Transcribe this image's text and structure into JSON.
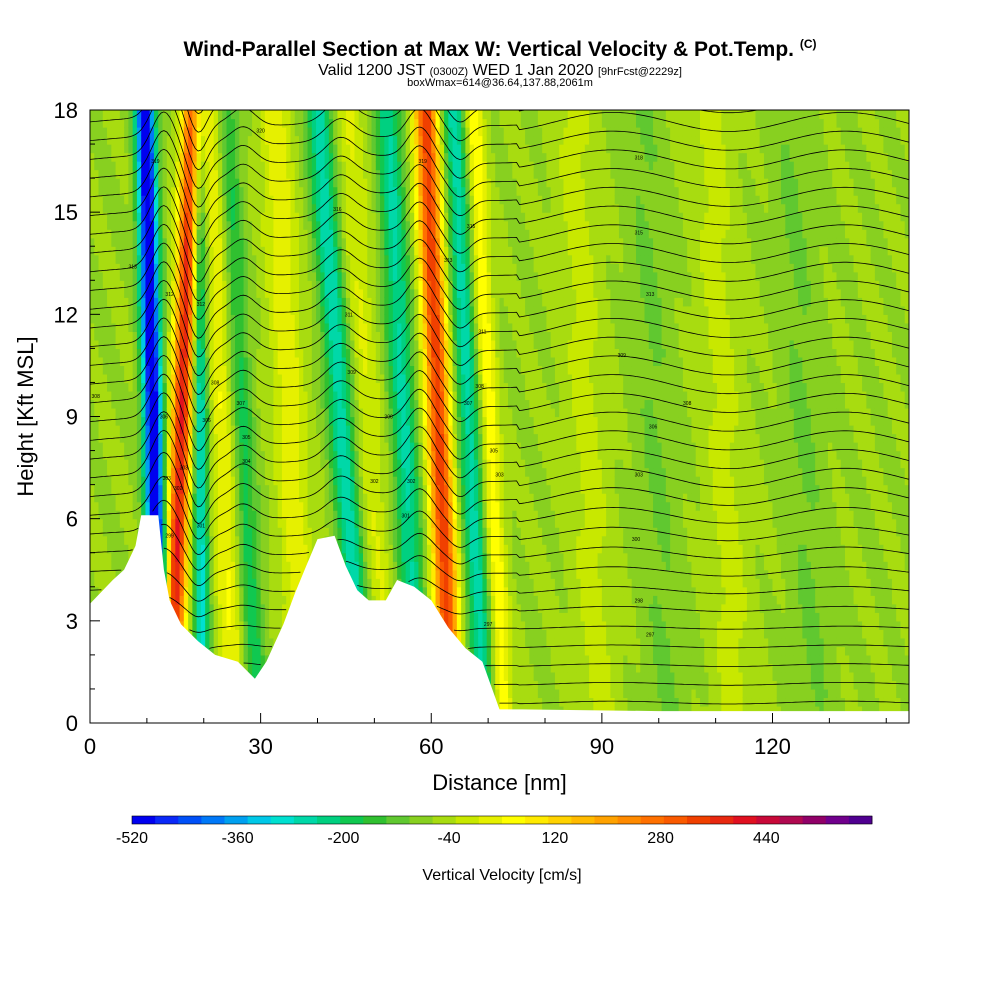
{
  "title": {
    "main": "Wind-Parallel Section at Max W: Vertical Velocity & Pot.Temp.",
    "copyright": "(C)",
    "valid_prefix": "Valid 1200 JST",
    "valid_utc": "(0300Z)",
    "valid_date": "WED 1 Jan 2020",
    "forecast": "[9hrFcst@2229z]",
    "box_wmax": "boxWmax=614@36.64,137.88,2061m"
  },
  "chart_data": {
    "type": "heatmap",
    "xlabel": "Distance [nm]",
    "ylabel": "Height [Kft MSL]",
    "xlim": [
      0,
      144
    ],
    "ylim": [
      0,
      18
    ],
    "x_ticks": [
      0,
      30,
      60,
      90,
      120
    ],
    "y_ticks": [
      0,
      3,
      6,
      9,
      12,
      15,
      18
    ],
    "grid": false,
    "colorbar": {
      "label": "Vertical Velocity [cm/s]",
      "tick_values": [
        -520,
        -360,
        -200,
        -40,
        120,
        280,
        440
      ],
      "min": -520,
      "max": 600,
      "step": 40,
      "colors": [
        "#0000f0",
        "#0a28f8",
        "#0050f8",
        "#0078f8",
        "#00a0f0",
        "#00c8e8",
        "#00e0d0",
        "#00d8a8",
        "#00d080",
        "#10c850",
        "#30c030",
        "#60c830",
        "#88d020",
        "#a8dc10",
        "#c8e800",
        "#e6f000",
        "#ffff00",
        "#ffea00",
        "#ffd200",
        "#ffba00",
        "#ffa200",
        "#ff8a00",
        "#ff7000",
        "#fa5a00",
        "#f04000",
        "#e82810",
        "#e01020",
        "#c80838",
        "#b00850",
        "#900068",
        "#70008c",
        "#500090"
      ]
    },
    "terrain_kft": [
      [
        0,
        3.5
      ],
      [
        4,
        4.2
      ],
      [
        6,
        4.5
      ],
      [
        8,
        5.2
      ],
      [
        9,
        6.1
      ],
      [
        12,
        6.1
      ],
      [
        13,
        4.5
      ],
      [
        14,
        3.6
      ],
      [
        16,
        2.9
      ],
      [
        19,
        2.4
      ],
      [
        22,
        2.0
      ],
      [
        26,
        1.8
      ],
      [
        29,
        1.3
      ],
      [
        31,
        1.8
      ],
      [
        34,
        2.9
      ],
      [
        36,
        3.8
      ],
      [
        38,
        4.6
      ],
      [
        40,
        5.4
      ],
      [
        43,
        5.5
      ],
      [
        45,
        4.6
      ],
      [
        47,
        3.9
      ],
      [
        49,
        3.6
      ],
      [
        52,
        3.6
      ],
      [
        54,
        4.2
      ],
      [
        57,
        4.0
      ],
      [
        60,
        3.6
      ],
      [
        63,
        2.8
      ],
      [
        66,
        2.2
      ],
      [
        69,
        1.8
      ],
      [
        72,
        0.4
      ],
      [
        76,
        0.4
      ],
      [
        100,
        0.35
      ],
      [
        144,
        0.35
      ]
    ],
    "updrafts": [
      {
        "x_kft": 16,
        "peak_cm_s": 560,
        "x_top_nm": 17.5
      },
      {
        "x_kft": 60,
        "peak_cm_s": 540,
        "x_top_nm": 60
      }
    ],
    "downdrafts": [
      {
        "x_kft": 12,
        "peak_cm_s": -520,
        "x_top_nm": 11
      }
    ],
    "theta_labels": [
      {
        "x": 11.5,
        "y": 16.5,
        "text": "319"
      },
      {
        "x": 30,
        "y": 17.4,
        "text": "320"
      },
      {
        "x": 58.5,
        "y": 16.5,
        "text": "319"
      },
      {
        "x": 96.5,
        "y": 16.6,
        "text": "318"
      },
      {
        "x": 43.5,
        "y": 15.1,
        "text": "316"
      },
      {
        "x": 67,
        "y": 14.6,
        "text": "315"
      },
      {
        "x": 96.5,
        "y": 14.4,
        "text": "315"
      },
      {
        "x": 7.5,
        "y": 13.4,
        "text": "313"
      },
      {
        "x": 63,
        "y": 13.6,
        "text": "313"
      },
      {
        "x": 98.5,
        "y": 12.6,
        "text": "313"
      },
      {
        "x": 14,
        "y": 12.6,
        "text": "312"
      },
      {
        "x": 19.5,
        "y": 12.3,
        "text": "312"
      },
      {
        "x": 45.5,
        "y": 12.0,
        "text": "311"
      },
      {
        "x": 69,
        "y": 11.5,
        "text": "311"
      },
      {
        "x": 93.5,
        "y": 10.8,
        "text": "309"
      },
      {
        "x": 46,
        "y": 10.3,
        "text": "309"
      },
      {
        "x": 22,
        "y": 10.0,
        "text": "308"
      },
      {
        "x": 68.5,
        "y": 9.9,
        "text": "308"
      },
      {
        "x": 1,
        "y": 9.6,
        "text": "308"
      },
      {
        "x": 26.5,
        "y": 9.4,
        "text": "307"
      },
      {
        "x": 66.5,
        "y": 9.4,
        "text": "307"
      },
      {
        "x": 105,
        "y": 9.4,
        "text": "308"
      },
      {
        "x": 13,
        "y": 9.0,
        "text": "306"
      },
      {
        "x": 52.5,
        "y": 9.0,
        "text": "306"
      },
      {
        "x": 20.5,
        "y": 8.9,
        "text": "306"
      },
      {
        "x": 99,
        "y": 8.7,
        "text": "306"
      },
      {
        "x": 27.5,
        "y": 8.4,
        "text": "305"
      },
      {
        "x": 71,
        "y": 8.0,
        "text": "305"
      },
      {
        "x": 27.5,
        "y": 7.7,
        "text": "304"
      },
      {
        "x": 16.5,
        "y": 7.5,
        "text": "303"
      },
      {
        "x": 13.5,
        "y": 7.2,
        "text": "303"
      },
      {
        "x": 72,
        "y": 7.3,
        "text": "303"
      },
      {
        "x": 96.5,
        "y": 7.3,
        "text": "303"
      },
      {
        "x": 50,
        "y": 7.1,
        "text": "302"
      },
      {
        "x": 15.5,
        "y": 6.9,
        "text": "302"
      },
      {
        "x": 56.5,
        "y": 7.1,
        "text": "302"
      },
      {
        "x": 55.5,
        "y": 6.1,
        "text": "301"
      },
      {
        "x": 19.5,
        "y": 5.8,
        "text": "301"
      },
      {
        "x": 96,
        "y": 5.4,
        "text": "300"
      },
      {
        "x": 14,
        "y": 5.5,
        "text": "299"
      },
      {
        "x": 96.5,
        "y": 3.6,
        "text": "298"
      },
      {
        "x": 70,
        "y": 2.9,
        "text": "297"
      },
      {
        "x": 98.5,
        "y": 2.6,
        "text": "297"
      }
    ]
  }
}
